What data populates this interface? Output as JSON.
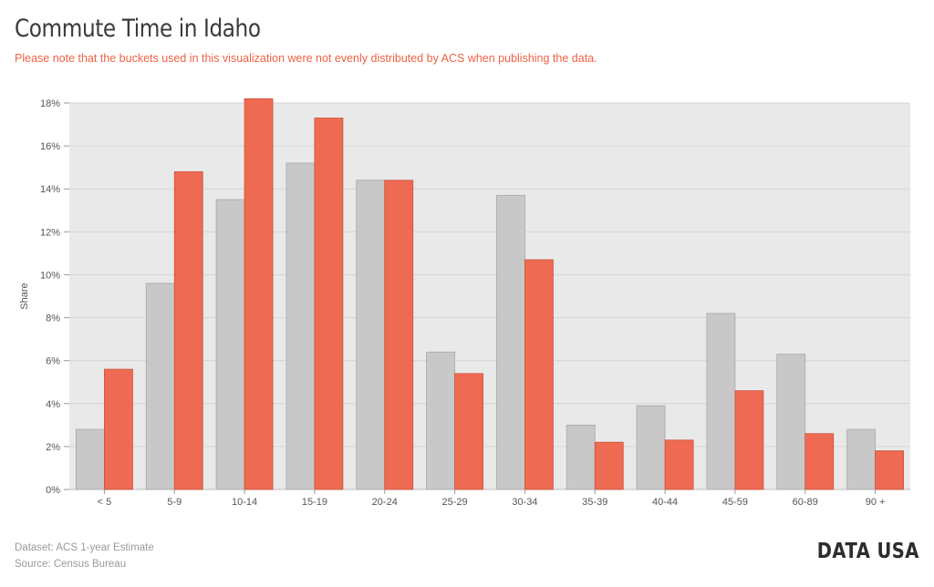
{
  "header": {
    "title": "Commute Time in Idaho",
    "subtitle": "Please note that the buckets used in this visualization were not evenly distributed by ACS when publishing the data."
  },
  "footer": {
    "dataset": "Dataset: ACS 1-year Estimate",
    "source": "Source: Census Bureau",
    "logo": "DATA USA"
  },
  "colors": {
    "series_gray": "#c8c8c8",
    "series_red": "#ef6a52",
    "accent_text": "#ef6145",
    "plot_bg": "#e9e9e9"
  },
  "chart_data": {
    "type": "bar",
    "ylabel": "Share",
    "xlabel": "",
    "ylim": [
      0,
      18
    ],
    "yticks": [
      "0%",
      "2%",
      "4%",
      "6%",
      "8%",
      "10%",
      "12%",
      "14%",
      "16%",
      "18%"
    ],
    "grid": true,
    "categories": [
      "< 5",
      "5-9",
      "10-14",
      "15-19",
      "20-24",
      "25-29",
      "30-34",
      "35-39",
      "40-44",
      "45-59",
      "60-89",
      "90 +"
    ],
    "series": [
      {
        "color": "#c8c8c8",
        "values": [
          2.8,
          9.6,
          13.5,
          15.2,
          14.4,
          6.4,
          13.7,
          3.0,
          3.9,
          8.2,
          6.3,
          2.8
        ]
      },
      {
        "color": "#ef6a52",
        "values": [
          5.6,
          14.8,
          18.2,
          17.3,
          14.4,
          5.4,
          10.7,
          2.2,
          2.3,
          4.6,
          2.6,
          1.8
        ]
      }
    ]
  }
}
